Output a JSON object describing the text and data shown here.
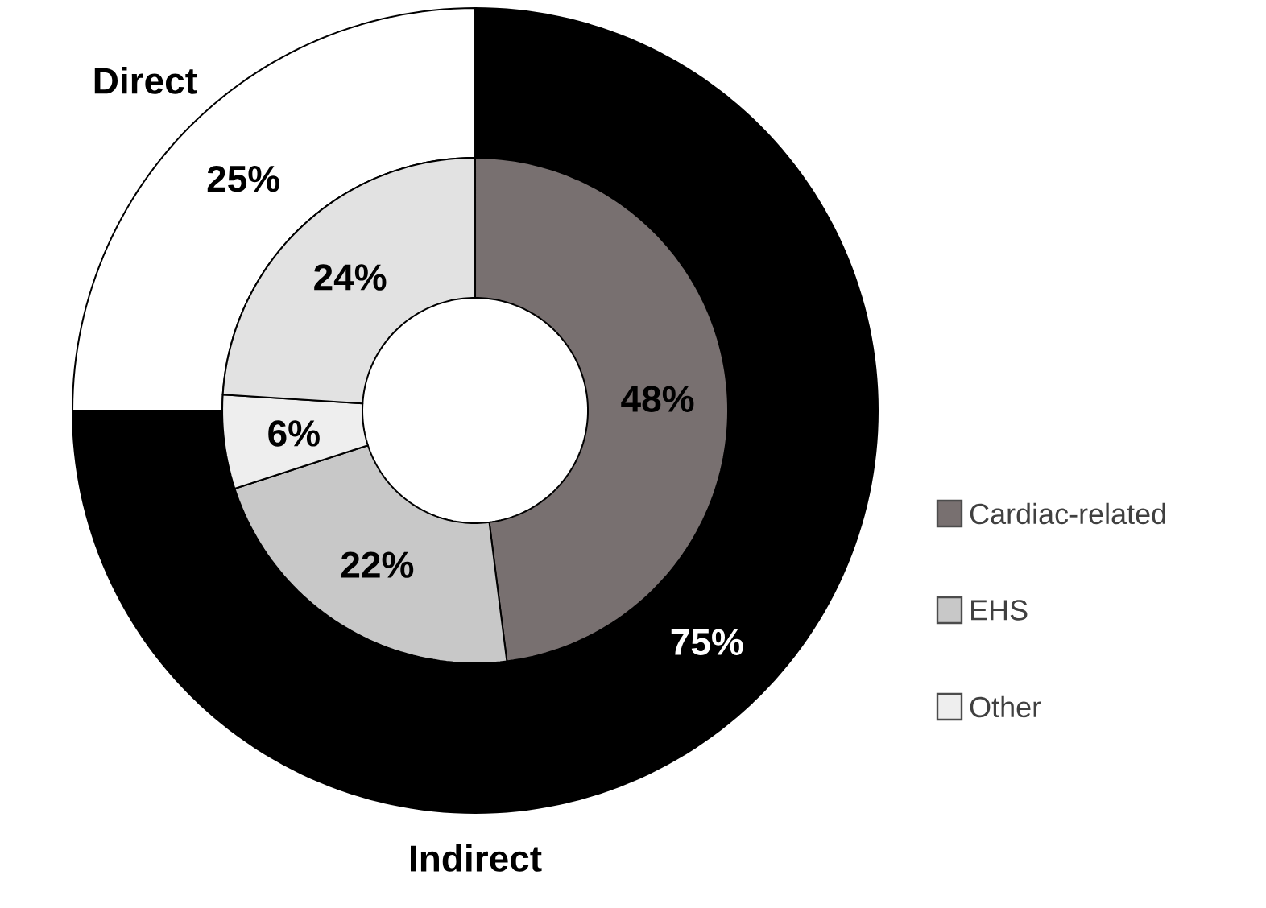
{
  "chart_data": [
    {
      "type": "donut",
      "categories": [
        "Indirect",
        "Direct"
      ],
      "values": [
        75,
        25
      ],
      "colors": [
        "#000000",
        "#ffffff"
      ],
      "value_labels": [
        "75%",
        "25%"
      ]
    },
    {
      "type": "donut",
      "categories": [
        "Cardiac-related",
        "EHS",
        "Other",
        null
      ],
      "values": [
        48,
        22,
        6,
        24
      ],
      "colors": [
        "#787070",
        "#c8c8c8",
        "#eeeeee",
        "#e2e2e2"
      ],
      "value_labels": [
        "48%",
        "22%",
        "6%",
        "24%"
      ],
      "legend": "bottom right"
    }
  ]
}
